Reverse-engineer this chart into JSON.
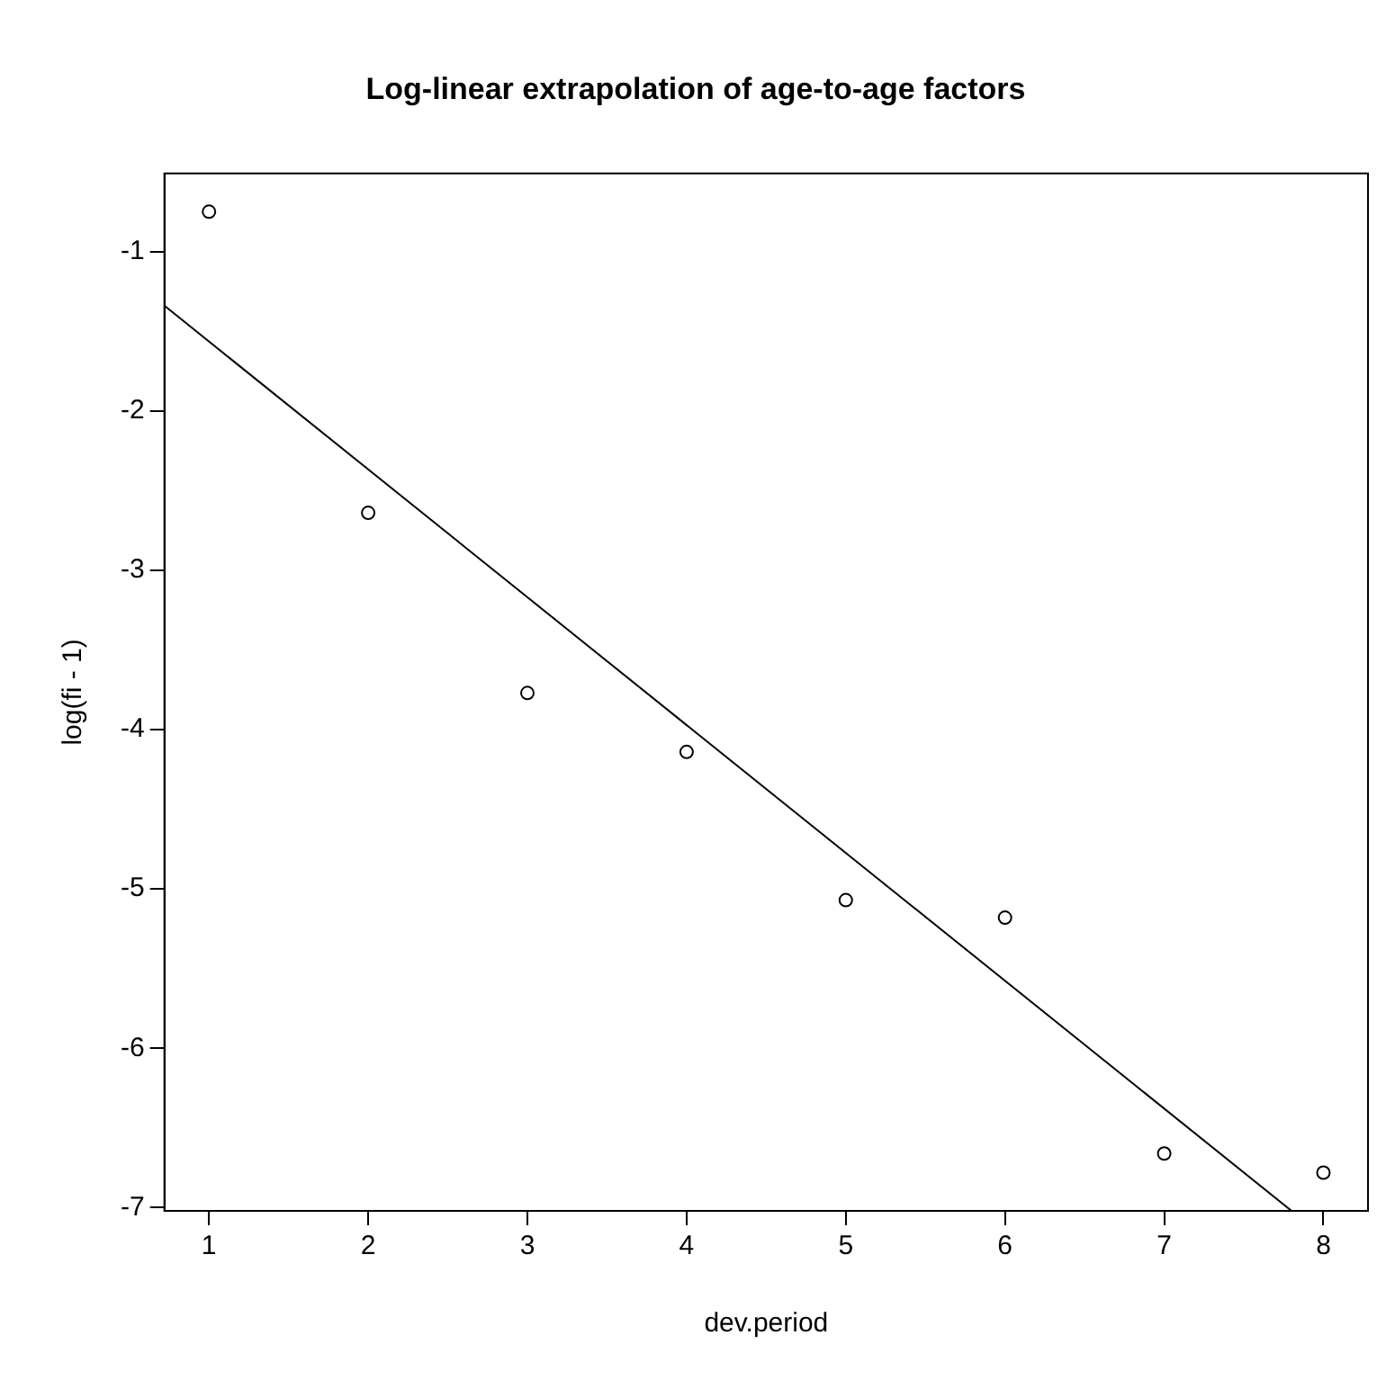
{
  "chart_data": {
    "type": "scatter",
    "title": "Log-linear extrapolation of age-to-age factors",
    "xlabel": "dev.period",
    "ylabel": "log(fi - 1)",
    "xlim": [
      0.72,
      8.28
    ],
    "ylim": [
      -7.02,
      -0.51
    ],
    "xticks": [
      1,
      2,
      3,
      4,
      5,
      6,
      7,
      8
    ],
    "yticks": [
      -7,
      -6,
      -5,
      -4,
      -3,
      -2,
      -1
    ],
    "grid": false,
    "legend": false,
    "marker": "circle",
    "series": [
      {
        "color": "#000000",
        "x": [
          1,
          2,
          3,
          4,
          5,
          6,
          7,
          8
        ],
        "values": [
          -0.75,
          -2.64,
          -3.77,
          -4.14,
          -5.07,
          -5.18,
          -6.66,
          -6.78
        ]
      },
      {
        "type": "line",
        "marker": "none",
        "color": "#000000",
        "x": [
          0.72,
          7.8
        ],
        "values": [
          -1.34,
          -7.02
        ]
      }
    ]
  }
}
